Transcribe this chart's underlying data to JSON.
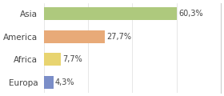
{
  "categories": [
    "Europa",
    "Africa",
    "America",
    "Asia"
  ],
  "values": [
    60.3,
    27.7,
    7.7,
    4.3
  ],
  "labels": [
    "60,3%",
    "27,7%",
    "7,7%",
    "4,3%"
  ],
  "bar_colors": [
    "#aec97d",
    "#e8aa78",
    "#e8d470",
    "#7b8ec8"
  ],
  "background_color": "#ffffff",
  "xlim": [
    0,
    80
  ],
  "bar_height": 0.55,
  "label_fontsize": 7,
  "category_fontsize": 7.5
}
